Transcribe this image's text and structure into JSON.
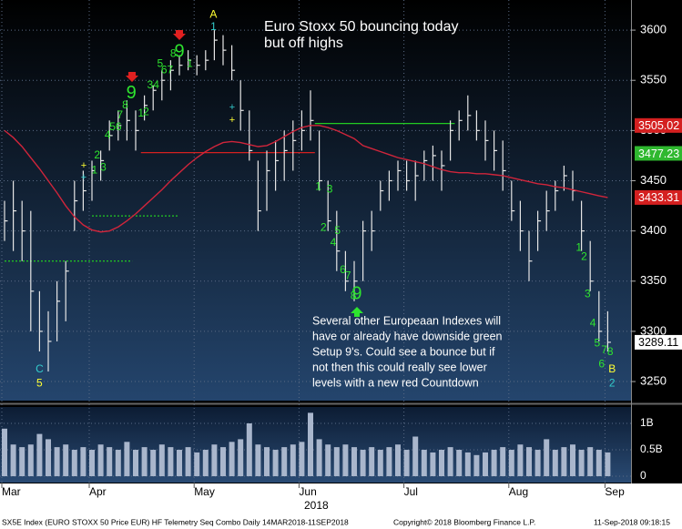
{
  "chart_data": {
    "type": "ohlc",
    "title_lines": [
      "Euro Stoxx 50 bouncing today",
      "but off highs"
    ],
    "comment_lines": [
      "Several other Europeaan Indexes will",
      "have or already have downside green",
      "Setup 9's.  Could see a bounce but if",
      "not then this could really see lower",
      "levels with a new red Countdown"
    ],
    "categories": [
      "Mar",
      null,
      null,
      null,
      null,
      null,
      null,
      null,
      null,
      null,
      "Apr",
      null,
      null,
      null,
      null,
      null,
      null,
      null,
      null,
      null,
      null,
      null,
      "May",
      null,
      null,
      null,
      null,
      null,
      null,
      null,
      null,
      null,
      null,
      null,
      "Jun",
      null,
      null,
      null,
      null,
      null,
      null,
      null,
      null,
      null,
      null,
      null,
      "Jul",
      null,
      null,
      null,
      null,
      null,
      null,
      null,
      null,
      null,
      null,
      null,
      "Aug",
      null,
      null,
      null,
      null,
      null,
      null,
      null,
      null,
      null,
      null,
      "Sep"
    ],
    "year": "2018",
    "bar_color": "#e6e6e6",
    "high": [
      3430,
      3450,
      3430,
      3420,
      3340,
      3320,
      3350,
      3370,
      3450,
      3460,
      3470,
      3480,
      3510,
      3520,
      3530,
      3520,
      3535,
      3545,
      3560,
      3570,
      3575,
      3580,
      3575,
      3580,
      3600,
      3595,
      3585,
      3550,
      3520,
      3470,
      3480,
      3490,
      3500,
      3510,
      3520,
      3540,
      3500,
      3450,
      3420,
      3380,
      3370,
      3410,
      3420,
      3450,
      3460,
      3470,
      3470,
      3470,
      3480,
      3485,
      3480,
      3510,
      3520,
      3535,
      3520,
      3510,
      3500,
      3490,
      3450,
      3430,
      3400,
      3420,
      3440,
      3450,
      3465,
      3460,
      3430,
      3390,
      3340,
      3320
    ],
    "low": [
      3390,
      3380,
      3370,
      3300,
      3280,
      3260,
      3290,
      3310,
      3400,
      3420,
      3430,
      3450,
      3480,
      3490,
      3490,
      3480,
      3510,
      3520,
      3530,
      3540,
      3555,
      3560,
      3555,
      3560,
      3570,
      3565,
      3550,
      3500,
      3470,
      3400,
      3420,
      3440,
      3450,
      3460,
      3480,
      3490,
      3440,
      3400,
      3360,
      3340,
      3330,
      3350,
      3380,
      3420,
      3430,
      3440,
      3440,
      3430,
      3450,
      3450,
      3440,
      3470,
      3490,
      3500,
      3490,
      3470,
      3460,
      3440,
      3410,
      3380,
      3350,
      3380,
      3400,
      3420,
      3440,
      3430,
      3380,
      3340,
      3290,
      3280
    ],
    "close": [
      3410,
      3420,
      3400,
      3340,
      3300,
      3290,
      3330,
      3360,
      3430,
      3440,
      3460,
      3470,
      3495,
      3505,
      3510,
      3500,
      3525,
      3540,
      3550,
      3560,
      3565,
      3570,
      3565,
      3570,
      3590,
      3580,
      3560,
      3520,
      3480,
      3420,
      3460,
      3470,
      3480,
      3490,
      3500,
      3510,
      3450,
      3410,
      3380,
      3350,
      3350,
      3400,
      3400,
      3440,
      3450,
      3460,
      3450,
      3455,
      3470,
      3475,
      3465,
      3500,
      3510,
      3515,
      3500,
      3490,
      3480,
      3460,
      3420,
      3400,
      3370,
      3410,
      3420,
      3440,
      3455,
      3440,
      3400,
      3350,
      3300,
      3289.11
    ],
    "ylim": [
      3231,
      3630
    ],
    "yticks": [
      3250,
      3300,
      3350,
      3400,
      3450,
      3500,
      3550,
      3600
    ],
    "grid": true,
    "moving_average": {
      "color": "#d0253b",
      "values": [
        3500,
        3493,
        3484,
        3473,
        3462,
        3450,
        3438,
        3425,
        3414,
        3406,
        3401,
        3399,
        3400,
        3404,
        3410,
        3417,
        3425,
        3433,
        3441,
        3450,
        3458,
        3466,
        3473,
        3479,
        3484,
        3488,
        3489,
        3488,
        3486,
        3484,
        3485,
        3489,
        3494,
        3499,
        3503,
        3505,
        3505,
        3503,
        3500,
        3496,
        3492,
        3485,
        3482,
        3479,
        3476,
        3473,
        3471,
        3469,
        3467,
        3464,
        3461,
        3459,
        3458,
        3458,
        3457,
        3457,
        3456,
        3455,
        3453,
        3451,
        3449,
        3447,
        3446,
        3444,
        3443,
        3441,
        3439,
        3437,
        3435,
        3433.31
      ]
    },
    "price_labels": [
      {
        "value": 3505.02,
        "color": "#d42020",
        "text_color": "#ffffff"
      },
      {
        "value": 3477.23,
        "color": "#2fb82f",
        "text_color": "#ffffff"
      },
      {
        "value": 3433.31,
        "color": "#d42020",
        "text_color": "#ffffff"
      },
      {
        "value": 3289.11,
        "color": "#ffffff",
        "text_color": "#000000"
      }
    ],
    "levels": [
      {
        "value": 3507,
        "from": 35.5,
        "to": 51.5,
        "color": "#22cc22",
        "dashed": false
      },
      {
        "value": 3478,
        "from": 15.6,
        "to": 35.5,
        "color": "#d42020",
        "dashed": false
      },
      {
        "value": 3415,
        "from": 10,
        "to": 20,
        "color": "#22cc22",
        "dashed": true
      },
      {
        "value": 3370,
        "from": 0,
        "to": 14.6,
        "color": "#22cc22",
        "dashed": true
      }
    ],
    "annotations": [
      {
        "text": "A",
        "x": 23.9,
        "price": 3615,
        "color": "#ffff33",
        "large": false
      },
      {
        "text": "1",
        "x": 23.9,
        "price": 3603,
        "color": "#33cccc",
        "large": false
      },
      {
        "text": "C",
        "x": 4.0,
        "price": 3262,
        "color": "#33cccc",
        "large": false
      },
      {
        "text": "5",
        "x": 4.0,
        "price": 3248,
        "color": "#ffff33",
        "large": false
      },
      {
        "text": "B",
        "x": 69.5,
        "price": 3262,
        "color": "#ffff33",
        "large": false
      },
      {
        "text": "2",
        "x": 69.5,
        "price": 3248,
        "color": "#33cccc",
        "large": false
      },
      {
        "text": "1",
        "x": 10.3,
        "price": 3460,
        "color": "#2ee52e",
        "large": false
      },
      {
        "text": "2",
        "x": 10.6,
        "price": 3475,
        "color": "#2ee52e",
        "large": false
      },
      {
        "text": "3",
        "x": 11.3,
        "price": 3463,
        "color": "#2ee52e",
        "large": false
      },
      {
        "text": "4",
        "x": 11.8,
        "price": 3495,
        "color": "#2ee52e",
        "large": false
      },
      {
        "text": "56",
        "x": 12.7,
        "price": 3503,
        "color": "#2ee52e",
        "large": false
      },
      {
        "text": "7",
        "x": 13.2,
        "price": 3515,
        "color": "#2ee52e",
        "large": false
      },
      {
        "text": "8",
        "x": 13.8,
        "price": 3525,
        "color": "#2ee52e",
        "large": false
      },
      {
        "text": "9",
        "x": 14.5,
        "price": 3537,
        "color": "#2ee52e",
        "large": true
      },
      {
        "text": "1",
        "x": 15.6,
        "price": 3517,
        "color": "#2ee52e",
        "large": false
      },
      {
        "text": "2",
        "x": 16.2,
        "price": 3518,
        "color": "#2ee52e",
        "large": false
      },
      {
        "text": "34",
        "x": 17.0,
        "price": 3545,
        "color": "#2ee52e",
        "large": false
      },
      {
        "text": "5",
        "x": 17.8,
        "price": 3566,
        "color": "#2ee52e",
        "large": false
      },
      {
        "text": "67",
        "x": 18.6,
        "price": 3560,
        "color": "#2ee52e",
        "large": false
      },
      {
        "text": "8",
        "x": 19.3,
        "price": 3576,
        "color": "#2ee52e",
        "large": false
      },
      {
        "text": "9",
        "x": 20.0,
        "price": 3578,
        "color": "#2ee52e",
        "large": true
      },
      {
        "text": "1",
        "x": 21.2,
        "price": 3566,
        "color": "#2ee52e",
        "large": false
      },
      {
        "text": "1",
        "x": 35.9,
        "price": 3444,
        "color": "#2ee52e",
        "large": false
      },
      {
        "text": "3",
        "x": 37.2,
        "price": 3441,
        "color": "#2ee52e",
        "large": false
      },
      {
        "text": "2",
        "x": 36.5,
        "price": 3403,
        "color": "#2ee52e",
        "large": false
      },
      {
        "text": "4",
        "x": 37.6,
        "price": 3388,
        "color": "#2ee52e",
        "large": false
      },
      {
        "text": "5",
        "x": 38.1,
        "price": 3400,
        "color": "#2ee52e",
        "large": false
      },
      {
        "text": "6",
        "x": 38.7,
        "price": 3361,
        "color": "#2ee52e",
        "large": false
      },
      {
        "text": "7",
        "x": 39.3,
        "price": 3355,
        "color": "#2ee52e",
        "large": false
      },
      {
        "text": "8",
        "x": 39.9,
        "price": 3335,
        "color": "#2ee52e",
        "large": false
      },
      {
        "text": "9",
        "x": 40.3,
        "price": 3337,
        "color": "#2ee52e",
        "large": true
      },
      {
        "text": "1",
        "x": 65.7,
        "price": 3383,
        "color": "#2ee52e",
        "large": false
      },
      {
        "text": "2",
        "x": 66.3,
        "price": 3374,
        "color": "#2ee52e",
        "large": false
      },
      {
        "text": "3",
        "x": 66.7,
        "price": 3337,
        "color": "#2ee52e",
        "large": false
      },
      {
        "text": "4",
        "x": 67.3,
        "price": 3308,
        "color": "#2ee52e",
        "large": false
      },
      {
        "text": "5",
        "x": 67.8,
        "price": 3288,
        "color": "#2ee52e",
        "large": false
      },
      {
        "text": "6",
        "x": 68.3,
        "price": 3267,
        "color": "#2ee52e",
        "large": false
      },
      {
        "text": "7",
        "x": 68.6,
        "price": 3281,
        "color": "#2ee52e",
        "large": false
      },
      {
        "text": "8",
        "x": 69.3,
        "price": 3279,
        "color": "#2ee52e",
        "large": false
      }
    ],
    "volume": {
      "color": "#a9b6cc",
      "values": [
        0.9,
        0.6,
        0.55,
        0.6,
        0.8,
        0.7,
        0.55,
        0.6,
        0.5,
        0.55,
        0.5,
        0.6,
        0.55,
        0.5,
        0.65,
        0.5,
        0.55,
        0.5,
        0.6,
        0.55,
        0.5,
        0.55,
        0.45,
        0.5,
        0.6,
        0.55,
        0.65,
        0.7,
        1.0,
        0.6,
        0.55,
        0.5,
        0.55,
        0.6,
        0.65,
        1.2,
        0.7,
        0.6,
        0.55,
        0.6,
        0.55,
        0.5,
        0.55,
        0.5,
        0.55,
        0.6,
        0.5,
        0.75,
        0.5,
        0.45,
        0.5,
        0.55,
        0.5,
        0.45,
        0.4,
        0.45,
        0.5,
        0.55,
        0.5,
        0.6,
        0.55,
        0.5,
        0.7,
        0.5,
        0.55,
        0.6,
        0.5,
        0.55,
        0.5,
        0.45
      ],
      "ylim": [
        -0.12,
        1.31
      ],
      "yticks": [
        {
          "value": 1,
          "label": "1B"
        },
        {
          "value": 0.5,
          "label": "0.5B"
        },
        0
      ]
    },
    "footer": {
      "left": "SX5E Index (EURO STOXX 50 Price EUR) HF Telemetry Seq Combo  Daily 14MAR2018-11SEP2018",
      "center": "Copyright© 2018 Bloomberg Finance L.P.",
      "right": "11-Sep-2018 09:18:15"
    }
  }
}
